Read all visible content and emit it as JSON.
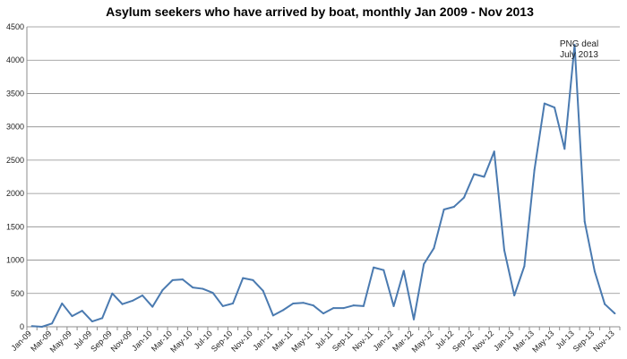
{
  "chart_data": {
    "type": "line",
    "title": "Asylum seekers who have arrived by boat, monthly Jan 2009 - Nov 2013",
    "xlabel": "",
    "ylabel": "",
    "ylim": [
      0,
      4500
    ],
    "yticks": [
      0,
      500,
      1000,
      1500,
      2000,
      2500,
      3000,
      3500,
      4000,
      4500
    ],
    "grid": "horizontal",
    "legend": "none",
    "line_color": "#4a7ab0",
    "months": [
      "Jan-09",
      "Feb-09",
      "Mar-09",
      "Apr-09",
      "May-09",
      "Jun-09",
      "Jul-09",
      "Aug-09",
      "Sep-09",
      "Oct-09",
      "Nov-09",
      "Dec-09",
      "Jan-10",
      "Feb-10",
      "Mar-10",
      "Apr-10",
      "May-10",
      "Jun-10",
      "Jul-10",
      "Aug-10",
      "Sep-10",
      "Oct-10",
      "Nov-10",
      "Dec-10",
      "Jan-11",
      "Feb-11",
      "Mar-11",
      "Apr-11",
      "May-11",
      "Jun-11",
      "Jul-11",
      "Aug-11",
      "Sep-11",
      "Oct-11",
      "Nov-11",
      "Dec-11",
      "Jan-12",
      "Feb-12",
      "Mar-12",
      "Apr-12",
      "May-12",
      "Jun-12",
      "Jul-12",
      "Aug-12",
      "Sep-12",
      "Oct-12",
      "Nov-12",
      "Dec-12",
      "Jan-13",
      "Feb-13",
      "Mar-13",
      "Apr-13",
      "May-13",
      "Jun-13",
      "Jul-13",
      "Aug-13",
      "Sep-13",
      "Oct-13",
      "Nov-13"
    ],
    "xtick_labels": [
      "Jan-09",
      "Mar-09",
      "May-09",
      "Jul-09",
      "Sep-09",
      "Nov-09",
      "Jan-10",
      "Mar-10",
      "May-10",
      "Jul-10",
      "Sep-10",
      "Nov-10",
      "Jan-11",
      "Mar-11",
      "May-11",
      "Jul-11",
      "Sep-11",
      "Nov-11",
      "Jan-12",
      "Mar-12",
      "May-12",
      "Jul-12",
      "Sep-12",
      "Nov-12",
      "Jan-13",
      "Mar-13",
      "May-13",
      "Jul-13",
      "Sep-13",
      "Nov-13"
    ],
    "series": [
      {
        "values": [
          10,
          0,
          50,
          350,
          160,
          240,
          80,
          130,
          500,
          340,
          390,
          470,
          300,
          550,
          700,
          710,
          590,
          570,
          510,
          310,
          350,
          730,
          700,
          540,
          170,
          250,
          350,
          360,
          320,
          200,
          280,
          280,
          320,
          310,
          890,
          850,
          310,
          840,
          110,
          940,
          1180,
          1760,
          1800,
          1940,
          2290,
          2250,
          2630,
          1150,
          470,
          910,
          2350,
          3350,
          3290,
          2670,
          4230,
          1580,
          830,
          340,
          200
        ]
      }
    ],
    "annotations": [
      {
        "lines": [
          "PNG deal",
          "July 2013"
        ],
        "month": "Jul-13"
      }
    ]
  }
}
